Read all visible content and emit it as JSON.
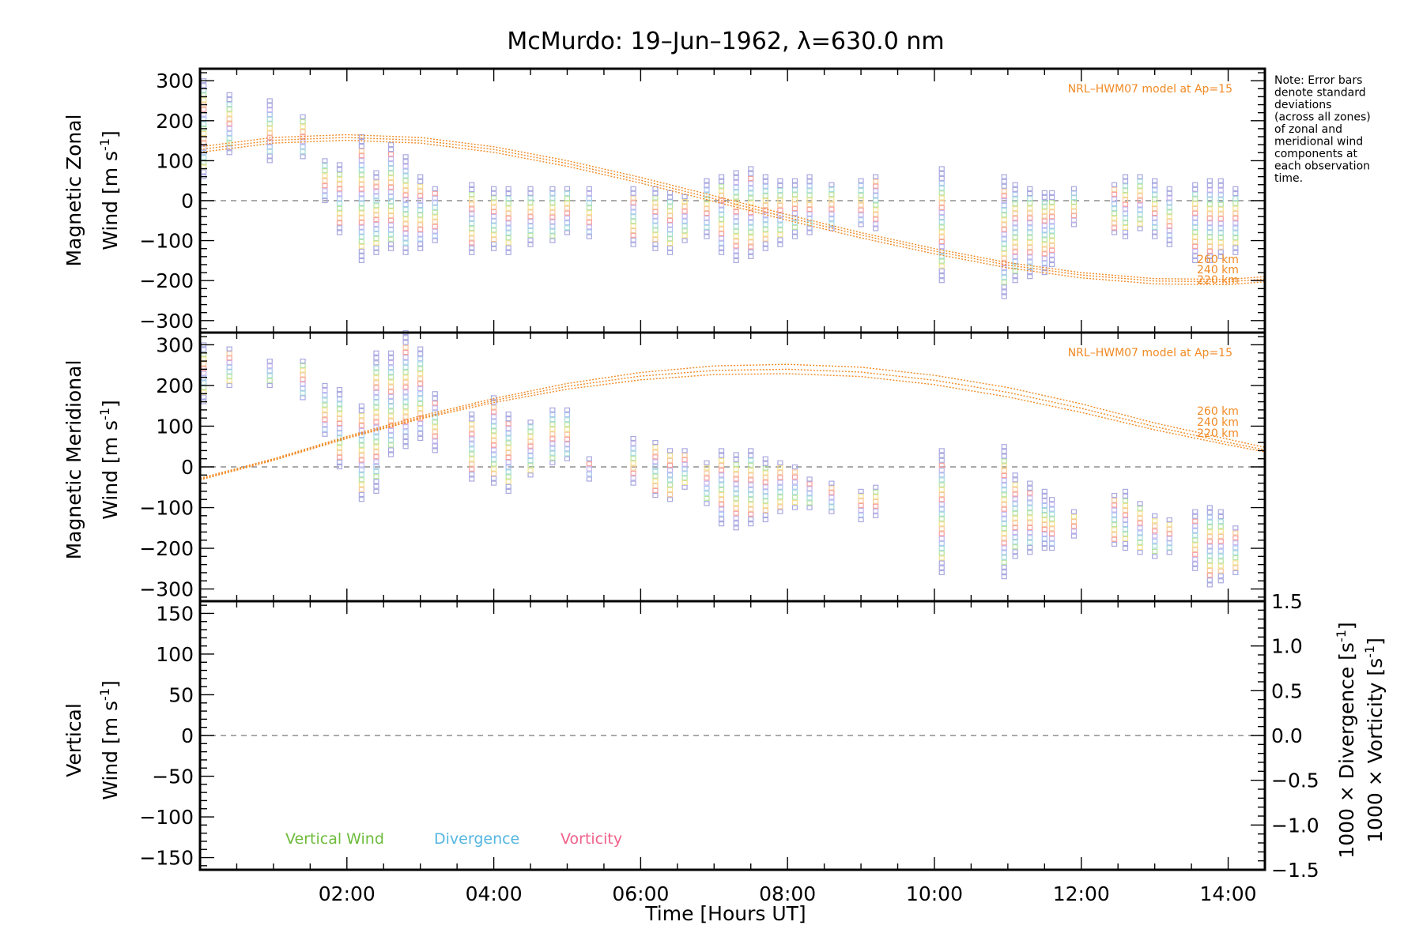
{
  "colors": {
    "model": "#f08a24",
    "vertical": "#6dbb3c",
    "divergence": "#55b6e0",
    "vorticity": "#f0608a",
    "outlier": "#a8a8e0",
    "zero_line": "#777777"
  },
  "chart_data": [
    {
      "type": "scatter",
      "title": "McMurdo: 19–Jun–1962, λ=630.0 nm",
      "ylabel_line1": "Magnetic Zonal",
      "ylabel_line2": "Wind [m s",
      "ylabel_sup": "-1",
      "ylabel_close": "]",
      "ylim": [
        -330,
        330
      ],
      "yticks": [
        -300,
        -200,
        -100,
        0,
        100,
        200,
        300
      ],
      "ytick_labels": [
        "−300",
        "−200",
        "−100",
        "0",
        "100",
        "200",
        "300"
      ],
      "xlim": [
        0,
        14.5
      ],
      "model_label": "NRL–HWM07 model at Ap=15",
      "model_altitudes": [
        "260 km",
        "240 km",
        "220 km"
      ],
      "model_curves": [
        {
          "altitude": "260 km",
          "x": [
            0,
            1,
            2,
            3,
            4,
            5,
            6,
            7,
            8,
            9,
            10,
            11,
            12,
            13,
            14,
            14.5
          ],
          "y": [
            135,
            158,
            165,
            158,
            135,
            100,
            58,
            12,
            -35,
            -80,
            -120,
            -155,
            -180,
            -195,
            -197,
            -190
          ]
        },
        {
          "altitude": "240 km",
          "x": [
            0,
            1,
            2,
            3,
            4,
            5,
            6,
            7,
            8,
            9,
            10,
            11,
            12,
            13,
            14,
            14.5
          ],
          "y": [
            128,
            151,
            158,
            151,
            128,
            93,
            51,
            5,
            -42,
            -86,
            -126,
            -161,
            -186,
            -201,
            -203,
            -196
          ]
        },
        {
          "altitude": "220 km",
          "x": [
            0,
            1,
            2,
            3,
            4,
            5,
            6,
            7,
            8,
            9,
            10,
            11,
            12,
            13,
            14,
            14.5
          ],
          "y": [
            121,
            144,
            151,
            144,
            121,
            86,
            44,
            -2,
            -49,
            -93,
            -133,
            -168,
            -193,
            -208,
            -210,
            -203
          ]
        }
      ],
      "observations": [
        {
          "t": 0.05,
          "lo": 60,
          "hi": 300
        },
        {
          "t": 0.4,
          "lo": 120,
          "hi": 265
        },
        {
          "t": 0.95,
          "lo": 100,
          "hi": 250
        },
        {
          "t": 1.4,
          "lo": 110,
          "hi": 210
        },
        {
          "t": 1.7,
          "lo": 0,
          "hi": 100
        },
        {
          "t": 1.9,
          "lo": -80,
          "hi": 90
        },
        {
          "t": 2.2,
          "lo": -150,
          "hi": 160
        },
        {
          "t": 2.4,
          "lo": -130,
          "hi": 70
        },
        {
          "t": 2.6,
          "lo": -120,
          "hi": 140
        },
        {
          "t": 2.8,
          "lo": -130,
          "hi": 110
        },
        {
          "t": 3.0,
          "lo": -120,
          "hi": 60
        },
        {
          "t": 3.2,
          "lo": -100,
          "hi": 30
        },
        {
          "t": 3.7,
          "lo": -130,
          "hi": 40
        },
        {
          "t": 4.0,
          "lo": -120,
          "hi": 30
        },
        {
          "t": 4.2,
          "lo": -130,
          "hi": 30
        },
        {
          "t": 4.5,
          "lo": -110,
          "hi": 30
        },
        {
          "t": 4.8,
          "lo": -100,
          "hi": 30
        },
        {
          "t": 5.0,
          "lo": -80,
          "hi": 30
        },
        {
          "t": 5.3,
          "lo": -90,
          "hi": 30
        },
        {
          "t": 5.9,
          "lo": -110,
          "hi": 30
        },
        {
          "t": 6.2,
          "lo": -120,
          "hi": 30
        },
        {
          "t": 6.4,
          "lo": -130,
          "hi": 20
        },
        {
          "t": 6.6,
          "lo": -100,
          "hi": 10
        },
        {
          "t": 6.9,
          "lo": -90,
          "hi": 50
        },
        {
          "t": 7.1,
          "lo": -130,
          "hi": 60
        },
        {
          "t": 7.3,
          "lo": -150,
          "hi": 70
        },
        {
          "t": 7.5,
          "lo": -140,
          "hi": 80
        },
        {
          "t": 7.7,
          "lo": -120,
          "hi": 60
        },
        {
          "t": 7.9,
          "lo": -110,
          "hi": 50
        },
        {
          "t": 8.1,
          "lo": -90,
          "hi": 50
        },
        {
          "t": 8.3,
          "lo": -80,
          "hi": 60
        },
        {
          "t": 8.6,
          "lo": -70,
          "hi": 40
        },
        {
          "t": 9.0,
          "lo": -60,
          "hi": 50
        },
        {
          "t": 9.2,
          "lo": -70,
          "hi": 60
        },
        {
          "t": 10.1,
          "lo": -200,
          "hi": 80
        },
        {
          "t": 10.95,
          "lo": -240,
          "hi": 60
        },
        {
          "t": 11.1,
          "lo": -200,
          "hi": 40
        },
        {
          "t": 11.3,
          "lo": -190,
          "hi": 30
        },
        {
          "t": 11.5,
          "lo": -180,
          "hi": 20
        },
        {
          "t": 11.6,
          "lo": -160,
          "hi": 20
        },
        {
          "t": 11.9,
          "lo": -60,
          "hi": 30
        },
        {
          "t": 12.45,
          "lo": -80,
          "hi": 40
        },
        {
          "t": 12.6,
          "lo": -90,
          "hi": 60
        },
        {
          "t": 12.8,
          "lo": -70,
          "hi": 60
        },
        {
          "t": 13.0,
          "lo": -90,
          "hi": 50
        },
        {
          "t": 13.2,
          "lo": -110,
          "hi": 30
        },
        {
          "t": 13.55,
          "lo": -150,
          "hi": 40
        },
        {
          "t": 13.75,
          "lo": -150,
          "hi": 50
        },
        {
          "t": 13.9,
          "lo": -140,
          "hi": 50
        },
        {
          "t": 14.1,
          "lo": -130,
          "hi": 30
        }
      ]
    },
    {
      "type": "scatter",
      "ylabel_line1": "Magnetic Meridional",
      "ylabel_line2": "Wind [m s",
      "ylabel_sup": "-1",
      "ylabel_close": "]",
      "ylim": [
        -330,
        330
      ],
      "yticks": [
        -300,
        -200,
        -100,
        0,
        100,
        200,
        300
      ],
      "ytick_labels": [
        "−300",
        "−200",
        "−100",
        "0",
        "100",
        "200",
        "300"
      ],
      "xlim": [
        0,
        14.5
      ],
      "model_label": "NRL–HWM07 model at Ap=15",
      "model_altitudes": [
        "260 km",
        "240 km",
        "220 km"
      ],
      "model_curves": [
        {
          "altitude": "260 km",
          "x": [
            0,
            1,
            2,
            3,
            4,
            5,
            6,
            7,
            8,
            9,
            10,
            11,
            12,
            13,
            14,
            14.5
          ],
          "y": [
            -28,
            20,
            75,
            125,
            168,
            205,
            232,
            248,
            252,
            245,
            225,
            195,
            155,
            108,
            68,
            48
          ]
        },
        {
          "altitude": "240 km",
          "x": [
            0,
            1,
            2,
            3,
            4,
            5,
            6,
            7,
            8,
            9,
            10,
            11,
            12,
            13,
            14,
            14.5
          ],
          "y": [
            -30,
            18,
            72,
            121,
            163,
            198,
            223,
            237,
            240,
            233,
            213,
            183,
            144,
            99,
            60,
            42
          ]
        },
        {
          "altitude": "220 km",
          "x": [
            0,
            1,
            2,
            3,
            4,
            5,
            6,
            7,
            8,
            9,
            10,
            11,
            12,
            13,
            14,
            14.5
          ],
          "y": [
            -32,
            16,
            70,
            118,
            158,
            191,
            214,
            227,
            229,
            222,
            202,
            172,
            134,
            91,
            54,
            37
          ]
        }
      ],
      "observations": [
        {
          "t": 0.05,
          "lo": 160,
          "hi": 300
        },
        {
          "t": 0.4,
          "lo": 200,
          "hi": 290
        },
        {
          "t": 0.95,
          "lo": 200,
          "hi": 260
        },
        {
          "t": 1.4,
          "lo": 170,
          "hi": 260
        },
        {
          "t": 1.7,
          "lo": 80,
          "hi": 200
        },
        {
          "t": 1.9,
          "lo": 0,
          "hi": 190
        },
        {
          "t": 2.2,
          "lo": -80,
          "hi": 150
        },
        {
          "t": 2.4,
          "lo": -60,
          "hi": 280
        },
        {
          "t": 2.6,
          "lo": 30,
          "hi": 280
        },
        {
          "t": 2.8,
          "lo": 50,
          "hi": 330
        },
        {
          "t": 3.0,
          "lo": 70,
          "hi": 290
        },
        {
          "t": 3.2,
          "lo": 40,
          "hi": 180
        },
        {
          "t": 3.7,
          "lo": -30,
          "hi": 130
        },
        {
          "t": 4.0,
          "lo": -40,
          "hi": 170
        },
        {
          "t": 4.2,
          "lo": -60,
          "hi": 130
        },
        {
          "t": 4.5,
          "lo": -20,
          "hi": 110
        },
        {
          "t": 4.8,
          "lo": 10,
          "hi": 140
        },
        {
          "t": 5.0,
          "lo": 20,
          "hi": 140
        },
        {
          "t": 5.3,
          "lo": -30,
          "hi": 20
        },
        {
          "t": 5.9,
          "lo": -40,
          "hi": 70
        },
        {
          "t": 6.2,
          "lo": -70,
          "hi": 60
        },
        {
          "t": 6.4,
          "lo": -80,
          "hi": 40
        },
        {
          "t": 6.6,
          "lo": -50,
          "hi": 40
        },
        {
          "t": 6.9,
          "lo": -90,
          "hi": 10
        },
        {
          "t": 7.1,
          "lo": -140,
          "hi": 40
        },
        {
          "t": 7.3,
          "lo": -150,
          "hi": 30
        },
        {
          "t": 7.5,
          "lo": -140,
          "hi": 40
        },
        {
          "t": 7.7,
          "lo": -130,
          "hi": 20
        },
        {
          "t": 7.9,
          "lo": -110,
          "hi": 10
        },
        {
          "t": 8.1,
          "lo": -100,
          "hi": 0
        },
        {
          "t": 8.3,
          "lo": -100,
          "hi": -30
        },
        {
          "t": 8.6,
          "lo": -110,
          "hi": -40
        },
        {
          "t": 9.0,
          "lo": -130,
          "hi": -60
        },
        {
          "t": 9.2,
          "lo": -120,
          "hi": -50
        },
        {
          "t": 10.1,
          "lo": -260,
          "hi": 40
        },
        {
          "t": 10.95,
          "lo": -270,
          "hi": 50
        },
        {
          "t": 11.1,
          "lo": -220,
          "hi": -20
        },
        {
          "t": 11.3,
          "lo": -210,
          "hi": -40
        },
        {
          "t": 11.5,
          "lo": -200,
          "hi": -60
        },
        {
          "t": 11.6,
          "lo": -200,
          "hi": -80
        },
        {
          "t": 11.9,
          "lo": -170,
          "hi": -110
        },
        {
          "t": 12.45,
          "lo": -190,
          "hi": -70
        },
        {
          "t": 12.6,
          "lo": -200,
          "hi": -60
        },
        {
          "t": 12.8,
          "lo": -210,
          "hi": -90
        },
        {
          "t": 13.0,
          "lo": -220,
          "hi": -120
        },
        {
          "t": 13.2,
          "lo": -210,
          "hi": -130
        },
        {
          "t": 13.55,
          "lo": -250,
          "hi": -110
        },
        {
          "t": 13.75,
          "lo": -290,
          "hi": -100
        },
        {
          "t": 13.9,
          "lo": -280,
          "hi": -110
        },
        {
          "t": 14.1,
          "lo": -260,
          "hi": -150
        }
      ]
    },
    {
      "type": "scatter",
      "ylabel_line1": "Vertical",
      "ylabel_line2": "Wind [m s",
      "ylabel_sup": "-1",
      "ylabel_close": "]",
      "ylim": [
        -165,
        165
      ],
      "yticks": [
        -150,
        -100,
        -50,
        0,
        50,
        100,
        150
      ],
      "ytick_labels": [
        "−150",
        "−100",
        "−50",
        "0",
        "50",
        "100",
        "150"
      ],
      "y2lim": [
        -1.5,
        1.5
      ],
      "y2ticks": [
        -1.5,
        -1.0,
        -0.5,
        0.0,
        0.5,
        1.0,
        1.5
      ],
      "y2tick_labels": [
        "−1.5",
        "−1.0",
        "−0.5",
        "0.0",
        "0.5",
        "1.0",
        "1.5"
      ],
      "y2label_div": "1000 × Divergence [s",
      "y2label_vor": "1000 × Vorticity [s",
      "y2label_sup": "-1",
      "y2label_close": "]",
      "xlim": [
        0,
        14.5
      ],
      "xticks": [
        2,
        4,
        6,
        8,
        10,
        12,
        14
      ],
      "xtick_labels": [
        "02:00",
        "04:00",
        "06:00",
        "08:00",
        "10:00",
        "12:00",
        "14:00"
      ],
      "xlabel": "Time [Hours UT]",
      "legend": [
        "Vertical Wind",
        "Divergence",
        "Vorticity"
      ],
      "series": []
    }
  ],
  "note": "Note: Error bars denote standard deviations (across all zones) of zonal and meridional wind components at each observation time."
}
